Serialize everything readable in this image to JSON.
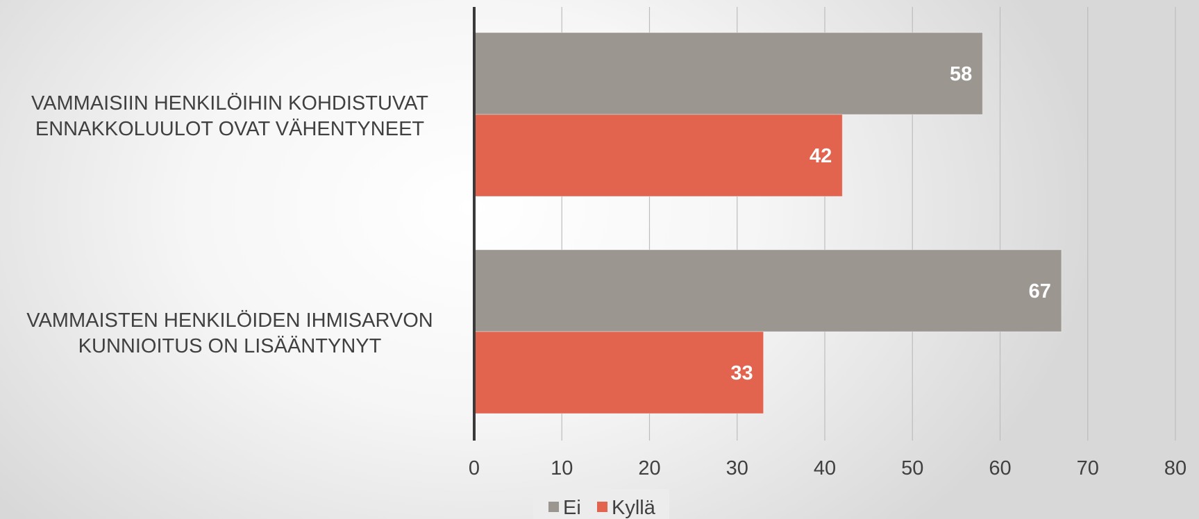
{
  "chart_data": {
    "type": "bar",
    "orientation": "horizontal",
    "categories": [
      [
        "VAMMAISIIN HENKILÖIHIN KOHDISTUVAT",
        "ENNAKKOLUULOT OVAT VÄHENTYNEET"
      ],
      [
        "VAMMAISTEN HENKILÖIDEN IHMISARVON",
        "KUNNIOITUS ON LISÄÄNTYNYT"
      ]
    ],
    "series": [
      {
        "name": "Ei",
        "color": "#9c9690",
        "values": [
          58,
          67
        ]
      },
      {
        "name": "Kyllä",
        "color": "#e2644f",
        "values": [
          42,
          33
        ]
      }
    ],
    "xlim": [
      0,
      80
    ],
    "xticks": [
      "0",
      "10",
      "20",
      "30",
      "40",
      "50",
      "60",
      "70",
      "80"
    ],
    "data_labels": true,
    "grid": true,
    "legend": {
      "position": "bottom",
      "entries": [
        "Ei",
        "Kyllä"
      ]
    },
    "title": "",
    "xlabel": "",
    "ylabel": ""
  }
}
